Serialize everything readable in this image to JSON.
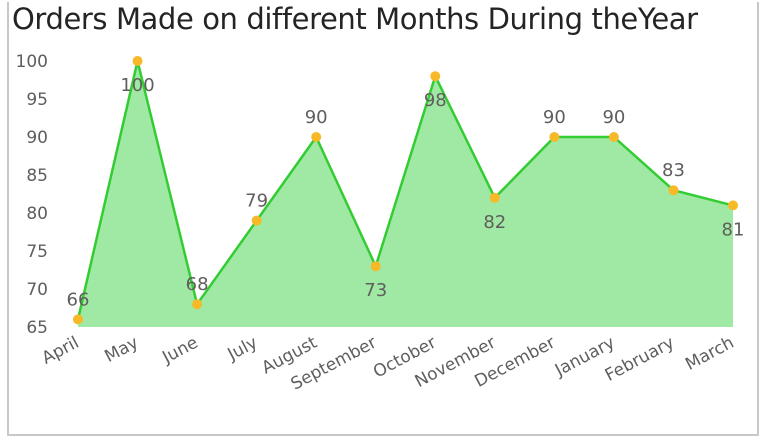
{
  "chart_data": {
    "type": "area",
    "title": "Orders Made on different Months During theYear",
    "xlabel": "",
    "ylabel": "",
    "categories": [
      "April",
      "May",
      "June",
      "July",
      "August",
      "September",
      "October",
      "November",
      "December",
      "January",
      "February",
      "March"
    ],
    "values": [
      66,
      100,
      68,
      79,
      90,
      73,
      98,
      82,
      90,
      90,
      83,
      81
    ],
    "ylim": [
      65,
      100
    ],
    "yticks": [
      65,
      70,
      75,
      80,
      85,
      90,
      95,
      100
    ],
    "grid": false,
    "data_labels": true,
    "colors": {
      "line": "#33cc33",
      "fill": "#9fe9a4",
      "marker": "#f7b928"
    }
  }
}
